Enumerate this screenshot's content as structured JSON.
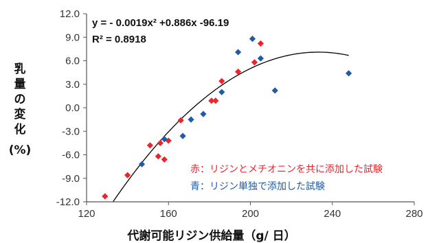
{
  "chart_data": {
    "type": "scatter",
    "title": "",
    "xlabel": "代謝可能リジン供給量（g/ 日）",
    "ylabel": "乳量の変化（%）",
    "xlim": [
      120,
      280
    ],
    "ylim": [
      -12,
      12
    ],
    "x_ticks": [
      120,
      160,
      200,
      240,
      280
    ],
    "y_ticks": [
      -12,
      -9,
      -6,
      -3,
      0,
      3,
      6,
      9,
      12
    ],
    "x_tick_labels": [
      "120",
      "160",
      "200",
      "240",
      "280"
    ],
    "y_tick_labels": [
      "-12.0",
      "-9.0",
      "-6.0",
      "-3.0",
      "0.0",
      "3.0",
      "6.0",
      "9.0",
      "12.0"
    ],
    "grid": false,
    "series": [
      {
        "name": "赤：リジンとメチオニンを共に添加した試験",
        "color": "#e8262b",
        "points": [
          [
            129,
            -11.3
          ],
          [
            140,
            -8.6
          ],
          [
            151,
            -4.8
          ],
          [
            155,
            -6.2
          ],
          [
            156,
            -4.5
          ],
          [
            158,
            -6.6
          ],
          [
            160,
            -4.2
          ],
          [
            166,
            -1.6
          ],
          [
            181,
            0.9
          ],
          [
            183,
            0.9
          ],
          [
            186,
            3.4
          ],
          [
            194,
            4.6
          ],
          [
            202,
            5.8
          ],
          [
            205,
            8.2
          ]
        ]
      },
      {
        "name": "青：リジン単独で添加した試験",
        "color": "#1f5ba8",
        "points": [
          [
            147,
            -7.2
          ],
          [
            158,
            -4.0
          ],
          [
            167,
            -3.6
          ],
          [
            171,
            -1.5
          ],
          [
            177,
            -0.8
          ],
          [
            186,
            2.0
          ],
          [
            194,
            7.1
          ],
          [
            201,
            8.8
          ],
          [
            205,
            6.3
          ],
          [
            212,
            2.2
          ],
          [
            248,
            4.4
          ]
        ]
      }
    ],
    "trendline": {
      "type": "polynomial",
      "coefficients": {
        "a": -0.0019,
        "b": 0.886,
        "c": -96.19
      },
      "x_range": [
        133,
        248
      ],
      "color": "#000000",
      "equation_text": "y = - 0.0019x² +0.886x -96.19",
      "r2_text": "R² = 0.8918"
    },
    "legend_placement": "bottom-right"
  }
}
